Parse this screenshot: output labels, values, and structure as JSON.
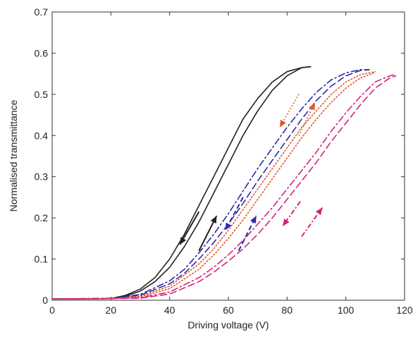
{
  "chart_data": {
    "type": "line",
    "title": "",
    "xlabel": "Driving voltage (V)",
    "ylabel": "Normalised transmittance",
    "xlim": [
      0,
      120
    ],
    "ylim": [
      0,
      0.7
    ],
    "xticks": [
      0,
      20,
      40,
      60,
      80,
      100,
      120
    ],
    "yticks": [
      0,
      0.1,
      0.2,
      0.3,
      0.4,
      0.5,
      0.6,
      0.7
    ],
    "xtick_labels": [
      "0",
      "20",
      "40",
      "60",
      "80",
      "100",
      "120"
    ],
    "ytick_labels": [
      "0",
      "0.1",
      "0.2",
      "0.3",
      "0.4",
      "0.5",
      "0.6",
      "0.7"
    ],
    "grid": false,
    "legend": "none",
    "series": [
      {
        "color": "#222222",
        "style": "solid",
        "direction": "up",
        "x": [
          0,
          20,
          25,
          30,
          35,
          40,
          45,
          50,
          55,
          60,
          65,
          70,
          75,
          80,
          85,
          88
        ],
        "y": [
          0.003,
          0.004,
          0.01,
          0.022,
          0.045,
          0.08,
          0.13,
          0.19,
          0.26,
          0.33,
          0.4,
          0.46,
          0.51,
          0.545,
          0.565,
          0.567
        ]
      },
      {
        "color": "#222222",
        "style": "solid",
        "direction": "down",
        "x": [
          0,
          20,
          25,
          30,
          35,
          40,
          45,
          50,
          55,
          60,
          65,
          70,
          75,
          80,
          85,
          88
        ],
        "y": [
          0.003,
          0.004,
          0.012,
          0.027,
          0.055,
          0.1,
          0.16,
          0.23,
          0.3,
          0.37,
          0.44,
          0.49,
          0.53,
          0.555,
          0.565,
          0.567
        ]
      },
      {
        "color": "#2b2ba8",
        "style": "dashed",
        "direction": "up",
        "x": [
          0,
          20,
          30,
          40,
          45,
          50,
          55,
          60,
          65,
          70,
          75,
          80,
          85,
          90,
          95,
          100,
          105,
          108
        ],
        "y": [
          0.003,
          0.004,
          0.012,
          0.04,
          0.065,
          0.1,
          0.14,
          0.185,
          0.235,
          0.29,
          0.34,
          0.39,
          0.44,
          0.485,
          0.52,
          0.545,
          0.558,
          0.56
        ]
      },
      {
        "color": "#2b2ba8",
        "style": "dashdot",
        "direction": "down",
        "x": [
          0,
          20,
          30,
          40,
          45,
          50,
          55,
          60,
          65,
          70,
          75,
          80,
          85,
          90,
          95,
          100,
          105,
          108
        ],
        "y": [
          0.003,
          0.004,
          0.014,
          0.047,
          0.075,
          0.115,
          0.16,
          0.21,
          0.265,
          0.32,
          0.37,
          0.42,
          0.465,
          0.505,
          0.535,
          0.552,
          0.56,
          0.56
        ]
      },
      {
        "color": "#e0562a",
        "style": "dotted",
        "direction": "up",
        "x": [
          0,
          20,
          30,
          40,
          50,
          55,
          60,
          65,
          70,
          75,
          80,
          85,
          90,
          95,
          100,
          105,
          110
        ],
        "y": [
          0.003,
          0.004,
          0.008,
          0.028,
          0.075,
          0.11,
          0.15,
          0.195,
          0.245,
          0.295,
          0.345,
          0.395,
          0.44,
          0.48,
          0.515,
          0.54,
          0.553
        ]
      },
      {
        "color": "#e0562a",
        "style": "dotted",
        "direction": "down",
        "x": [
          0,
          20,
          30,
          40,
          50,
          55,
          60,
          65,
          70,
          75,
          80,
          85,
          90,
          95,
          100,
          105,
          110
        ],
        "y": [
          0.003,
          0.004,
          0.01,
          0.034,
          0.088,
          0.125,
          0.17,
          0.22,
          0.27,
          0.32,
          0.37,
          0.42,
          0.46,
          0.5,
          0.53,
          0.548,
          0.555
        ]
      },
      {
        "color": "#d4237a",
        "style": "dashed",
        "direction": "up",
        "x": [
          0,
          30,
          40,
          50,
          55,
          60,
          65,
          70,
          75,
          80,
          85,
          90,
          95,
          100,
          105,
          110,
          115,
          117
        ],
        "y": [
          0.003,
          0.005,
          0.015,
          0.045,
          0.068,
          0.095,
          0.125,
          0.16,
          0.2,
          0.245,
          0.29,
          0.335,
          0.385,
          0.43,
          0.475,
          0.515,
          0.54,
          0.545
        ]
      },
      {
        "color": "#d4237a",
        "style": "dashdot",
        "direction": "down",
        "x": [
          0,
          30,
          40,
          50,
          55,
          60,
          65,
          70,
          75,
          80,
          85,
          90,
          95,
          100,
          105,
          110,
          115,
          117
        ],
        "y": [
          0.003,
          0.006,
          0.02,
          0.055,
          0.08,
          0.11,
          0.145,
          0.185,
          0.225,
          0.27,
          0.315,
          0.36,
          0.41,
          0.455,
          0.495,
          0.53,
          0.545,
          0.548
        ]
      }
    ]
  }
}
